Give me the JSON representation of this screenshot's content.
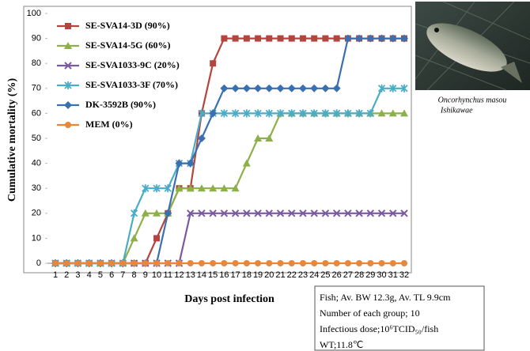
{
  "chart_data": {
    "type": "line",
    "x_label": "Days post infection",
    "y_label": "Cumulative mortality (%)",
    "categories": [
      "1",
      "2",
      "3",
      "4",
      "5",
      "6",
      "7",
      "8",
      "9",
      "10",
      "11",
      "12",
      "13",
      "14",
      "15",
      "16",
      "17",
      "18",
      "19",
      "20",
      "21",
      "22",
      "23",
      "24",
      "25",
      "26",
      "27",
      "28",
      "29",
      "30",
      "31",
      "32"
    ],
    "ylim": [
      0,
      100
    ],
    "yticks": [
      0,
      10,
      20,
      30,
      40,
      50,
      60,
      70,
      80,
      90,
      100
    ],
    "grid": false,
    "series": [
      {
        "name": "SE-SVA14-3D (90%)",
        "color": "#b5443e",
        "marker": "square",
        "values": [
          0,
          0,
          0,
          0,
          0,
          0,
          0,
          0,
          0,
          10,
          20,
          30,
          30,
          60,
          80,
          90,
          90,
          90,
          90,
          90,
          90,
          90,
          90,
          90,
          90,
          90,
          90,
          90,
          90,
          90,
          90,
          90
        ]
      },
      {
        "name": "SE-SVA14-5G (60%)",
        "color": "#8db04a",
        "marker": "triangle",
        "values": [
          0,
          0,
          0,
          0,
          0,
          0,
          0,
          10,
          20,
          20,
          20,
          30,
          30,
          30,
          30,
          30,
          30,
          40,
          50,
          50,
          60,
          60,
          60,
          60,
          60,
          60,
          60,
          60,
          60,
          60,
          60,
          60
        ]
      },
      {
        "name": "SE-SVA1033-9C (20%)",
        "color": "#7a5a9e",
        "marker": "x",
        "values": [
          0,
          0,
          0,
          0,
          0,
          0,
          0,
          0,
          0,
          0,
          0,
          0,
          20,
          20,
          20,
          20,
          20,
          20,
          20,
          20,
          20,
          20,
          20,
          20,
          20,
          20,
          20,
          20,
          20,
          20,
          20,
          20
        ]
      },
      {
        "name": "SE-SVA1033-3F (70%)",
        "color": "#4bacc6",
        "marker": "star",
        "values": [
          0,
          0,
          0,
          0,
          0,
          0,
          0,
          20,
          30,
          30,
          30,
          40,
          40,
          60,
          60,
          60,
          60,
          60,
          60,
          60,
          60,
          60,
          60,
          60,
          60,
          60,
          60,
          60,
          60,
          70,
          70,
          70
        ]
      },
      {
        "name": "DK-3592B (90%)",
        "color": "#3a6fb0",
        "marker": "diamond",
        "values": [
          0,
          0,
          0,
          0,
          0,
          0,
          0,
          0,
          0,
          0,
          20,
          40,
          40,
          50,
          60,
          70,
          70,
          70,
          70,
          70,
          70,
          70,
          70,
          70,
          70,
          70,
          90,
          90,
          90,
          90,
          90,
          90
        ]
      },
      {
        "name": "MEM (0%)",
        "color": "#e8873a",
        "marker": "circle",
        "values": [
          0,
          0,
          0,
          0,
          0,
          0,
          0,
          0,
          0,
          0,
          0,
          0,
          0,
          0,
          0,
          0,
          0,
          0,
          0,
          0,
          0,
          0,
          0,
          0,
          0,
          0,
          0,
          0,
          0,
          0,
          0,
          0
        ]
      }
    ]
  },
  "caption": [
    "Oncorhynchus masou",
    "Ishikawae"
  ],
  "info": [
    "Fish;  Av. BW 12.3g, Av. TL 9.9cm",
    "Number of  each group; 10",
    "Infectious dose;10⁶TCID₅₀/fish",
    "WT;11.8℃"
  ]
}
